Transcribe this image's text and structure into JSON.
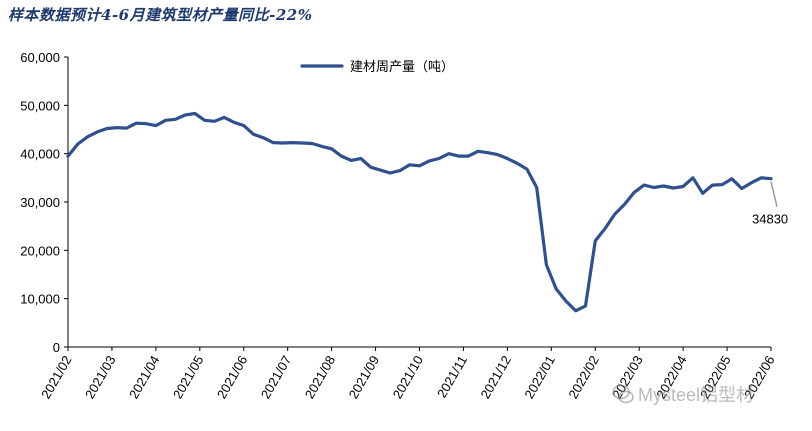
{
  "title": "样本数据预计4-6月建筑型材产量同比-22%",
  "watermark": "Mysteel铝型材",
  "colors": {
    "series": "#2f4f8f",
    "axis": "#000000",
    "title": "#1f3a6e",
    "leader": "#999999"
  },
  "chart_data": {
    "type": "line",
    "title": "样本数据预计4-6月建筑型材产量同比-22%",
    "xlabel": "",
    "ylabel": "",
    "ylim": [
      0,
      60000
    ],
    "yticks": [
      "0",
      "10,000",
      "20,000",
      "30,000",
      "40,000",
      "50,000",
      "60,000"
    ],
    "xticks": [
      "2021/02",
      "2021/03",
      "2021/04",
      "2021/05",
      "2021/06",
      "2021/07",
      "2021/08",
      "2021/09",
      "2021/10",
      "2021/11",
      "2021/12",
      "2022/01",
      "2022/02",
      "2022/03",
      "2022/04",
      "2022/05",
      "2022/06"
    ],
    "grid": false,
    "legend": "top-center",
    "end_label": "34830",
    "series": [
      {
        "name": "建材周产量（吨）",
        "values": [
          39500,
          42000,
          43500,
          44500,
          45200,
          45400,
          45300,
          46300,
          46200,
          45800,
          46900,
          47100,
          48000,
          48300,
          46900,
          46700,
          47500,
          46500,
          45800,
          44000,
          43300,
          42300,
          42200,
          42300,
          42200,
          42100,
          41500,
          41000,
          39500,
          38600,
          39000,
          37200,
          36600,
          36000,
          36500,
          37700,
          37500,
          38500,
          39000,
          40000,
          39500,
          39500,
          40500,
          40200,
          39800,
          39000,
          38000,
          36800,
          33000,
          17000,
          12000,
          9500,
          7500,
          8500,
          22000,
          24500,
          27500,
          29500,
          32000,
          33500,
          33000,
          33300,
          32900,
          33200,
          35000,
          31800,
          33500,
          33600,
          34800,
          32800,
          34000,
          35000,
          34830
        ]
      }
    ]
  }
}
